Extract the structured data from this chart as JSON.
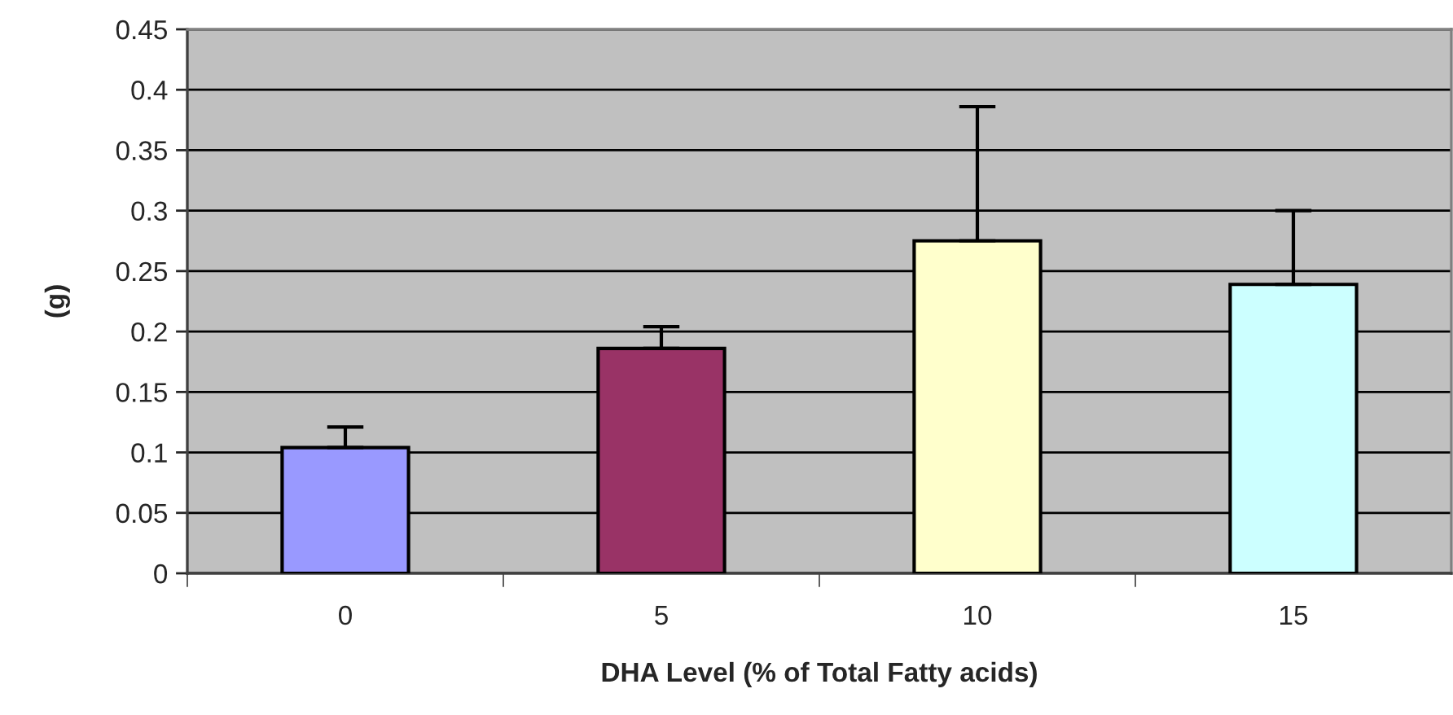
{
  "chart_data": {
    "type": "bar",
    "xlabel": "DHA Level (% of Total Fatty acids)",
    "ylabel": "(g)",
    "categories": [
      "0",
      "5",
      "10",
      "15"
    ],
    "values": [
      0.104,
      0.186,
      0.275,
      0.239
    ],
    "colors": [
      "#9999ff",
      "#993366",
      "#ffffcc",
      "#ccffff"
    ],
    "errors": [
      [
        0.104,
        0.121
      ],
      [
        0.186,
        0.204
      ],
      [
        0.275,
        0.386
      ],
      [
        0.239,
        0.3
      ]
    ],
    "ylim": [
      0,
      0.45
    ],
    "yticks": [
      0,
      0.05,
      0.1,
      0.15,
      0.2,
      0.25,
      0.3,
      0.35,
      0.4,
      0.45
    ],
    "grid": "y",
    "legend": false
  }
}
